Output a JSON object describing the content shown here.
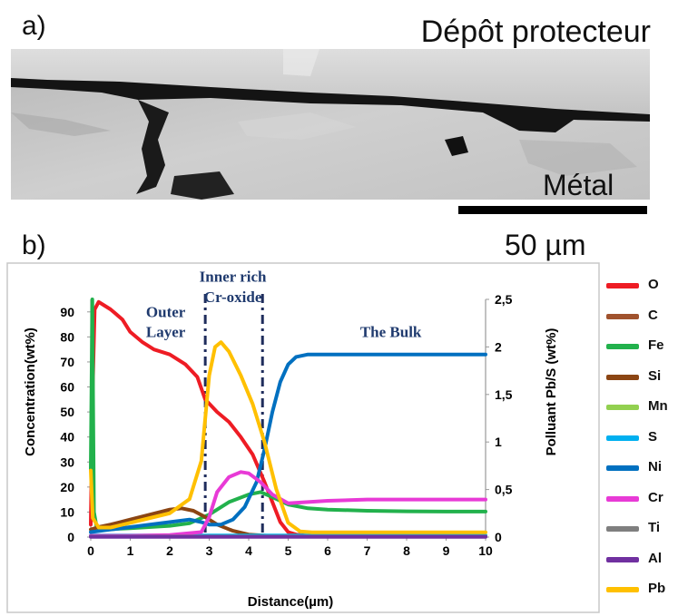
{
  "panel_a": {
    "label": "a)",
    "annotation_top": "Dépôt protecteur",
    "annotation_bottom": "Métal",
    "scale_bar_label": "50 µm"
  },
  "panel_b": {
    "label": "b)"
  },
  "chart_data": {
    "type": "line",
    "xlabel": "Distance(µm)",
    "ylabel": "Concentration(wt%)",
    "y2label": "Polluant Pb/S (wt%)",
    "xlim": [
      0,
      10
    ],
    "ylim": [
      0,
      95
    ],
    "y2lim": [
      0,
      2.5
    ],
    "xticks": [
      "0",
      "1",
      "2",
      "3",
      "4",
      "5",
      "6",
      "7",
      "8",
      "9",
      "10"
    ],
    "yticks": [
      "0",
      "10",
      "20",
      "30",
      "40",
      "50",
      "60",
      "70",
      "80",
      "90"
    ],
    "y2ticks": [
      "0",
      "0,5",
      "1",
      "1,5",
      "2",
      "2,5"
    ],
    "grid": false,
    "legend_position": "right",
    "annotations": [
      {
        "text": "Outer",
        "x": 1.9,
        "y": 88
      },
      {
        "text": "Layer",
        "x": 1.9,
        "y": 80
      },
      {
        "text": "Inner rich",
        "x": 3.6,
        "y": 102
      },
      {
        "text": "Cr-oxide",
        "x": 3.6,
        "y": 94
      },
      {
        "text": "The Bulk",
        "x": 7.6,
        "y": 80
      }
    ],
    "boundaries": [
      2.9,
      4.35
    ],
    "series": [
      {
        "name": "O",
        "color": "#ee1c24",
        "axis": "left",
        "x": [
          0,
          0.05,
          0.1,
          0.2,
          0.3,
          0.5,
          0.8,
          1.0,
          1.3,
          1.6,
          2.0,
          2.4,
          2.7,
          2.9,
          3.2,
          3.5,
          3.8,
          4.1,
          4.4,
          4.6,
          4.8,
          5.0,
          5.2,
          5.5,
          6,
          7,
          8,
          9,
          10
        ],
        "y": [
          5,
          60,
          91,
          94,
          93,
          91,
          87,
          82,
          78,
          75,
          73,
          69,
          64,
          55,
          50,
          46,
          40,
          33,
          22,
          14,
          6,
          2,
          1,
          0.5,
          0.5,
          0.5,
          0.5,
          0.5,
          0.5
        ]
      },
      {
        "name": "C",
        "color": "#a0522d",
        "axis": "left",
        "x": [
          0,
          10
        ],
        "y": [
          0.3,
          0.3
        ]
      },
      {
        "name": "Fe",
        "color": "#22b14c",
        "axis": "left",
        "x": [
          0,
          0.04,
          0.08,
          0.15,
          0.3,
          1.0,
          2.0,
          2.5,
          3.0,
          3.5,
          4.0,
          4.3,
          4.6,
          5.0,
          5.5,
          6.0,
          7,
          8,
          9,
          10
        ],
        "y": [
          27,
          95,
          10,
          4,
          3,
          3.5,
          4.5,
          5.5,
          9,
          14,
          17,
          18,
          16,
          13,
          11.5,
          11,
          10.5,
          10.3,
          10.2,
          10.2
        ]
      },
      {
        "name": "Si",
        "color": "#8b4513",
        "axis": "left",
        "x": [
          0,
          0.2,
          0.5,
          1.0,
          1.5,
          2.0,
          2.3,
          2.6,
          2.9,
          3.2,
          3.6,
          4.0,
          4.5,
          5,
          6,
          10
        ],
        "y": [
          3,
          4,
          5,
          7,
          9,
          11,
          11.5,
          10.5,
          8,
          5,
          2.5,
          1,
          0.5,
          0.3,
          0.3,
          0.3
        ]
      },
      {
        "name": "Mn",
        "color": "#92d050",
        "axis": "left",
        "x": [
          0,
          10
        ],
        "y": [
          0.4,
          0.4
        ]
      },
      {
        "name": "S",
        "color": "#00b0f0",
        "axis": "left",
        "x": [
          0,
          10
        ],
        "y": [
          0.6,
          0.6
        ]
      },
      {
        "name": "Ni",
        "color": "#0070c0",
        "axis": "left",
        "x": [
          0,
          0.5,
          1.0,
          1.5,
          2.0,
          2.5,
          2.8,
          3.0,
          3.3,
          3.6,
          3.9,
          4.2,
          4.4,
          4.6,
          4.8,
          5.0,
          5.2,
          5.5,
          6.0,
          7,
          8,
          9,
          10
        ],
        "y": [
          2,
          3,
          4,
          5,
          6,
          7,
          6,
          5,
          5,
          7,
          12,
          22,
          35,
          50,
          62,
          69,
          72,
          73,
          73,
          73,
          73,
          73,
          73
        ]
      },
      {
        "name": "Cr",
        "color": "#e83ad6",
        "axis": "left",
        "x": [
          0,
          1.0,
          2.0,
          2.8,
          3.0,
          3.2,
          3.5,
          3.8,
          4.0,
          4.3,
          4.6,
          5.0,
          5.5,
          6.0,
          7,
          8,
          9,
          10
        ],
        "y": [
          0.5,
          0.5,
          0.8,
          2,
          8,
          18,
          24,
          26,
          25.5,
          22,
          17,
          13.5,
          14,
          14.5,
          15,
          15,
          15,
          15
        ]
      },
      {
        "name": "Ti",
        "color": "#7f7f7f",
        "axis": "left",
        "x": [
          0,
          10
        ],
        "y": [
          0.2,
          0.2
        ]
      },
      {
        "name": "Al",
        "color": "#7030a0",
        "axis": "left",
        "x": [
          0,
          10
        ],
        "y": [
          0.1,
          0.1
        ]
      },
      {
        "name": "Pb",
        "color": "#ffc000",
        "axis": "right",
        "x": [
          0,
          0.05,
          0.2,
          0.5,
          1.0,
          1.5,
          2.0,
          2.5,
          2.8,
          3.0,
          3.15,
          3.3,
          3.5,
          3.8,
          4.1,
          4.4,
          4.7,
          5.0,
          5.3,
          5.6,
          6.0,
          7,
          8,
          9,
          10
        ],
        "y": [
          0.7,
          0.2,
          0.1,
          0.1,
          0.15,
          0.2,
          0.25,
          0.4,
          0.8,
          1.7,
          2.0,
          2.05,
          1.95,
          1.7,
          1.4,
          1.0,
          0.5,
          0.15,
          0.06,
          0.05,
          0.05,
          0.05,
          0.05,
          0.05,
          0.05
        ]
      }
    ]
  }
}
